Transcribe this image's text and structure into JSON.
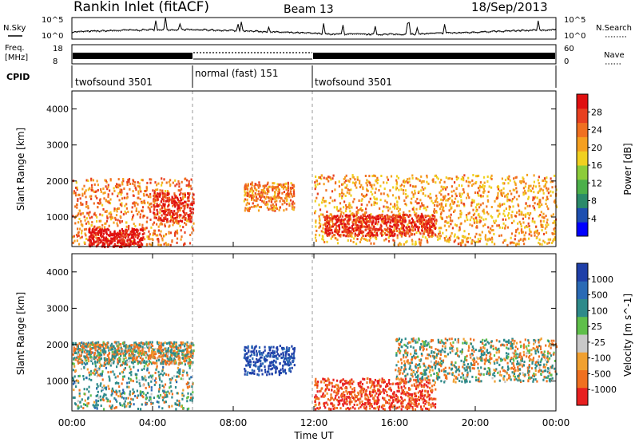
{
  "header": {
    "title": "Rankin Inlet (fitACF)",
    "beam": "Beam 13",
    "date": "18/Sep/2013"
  },
  "noise_panel": {
    "left_label": "N.Sky",
    "right_label": "N.Search",
    "left_ticks": [
      "10^5",
      "10^0"
    ],
    "right_ticks": [
      "10^5",
      "10^0"
    ]
  },
  "freq_panel": {
    "left_label_1": "Freq.",
    "left_label_2": "[MHz]",
    "left_ticks": [
      "18",
      "8"
    ],
    "right_label": "Nave",
    "right_ticks": [
      "60",
      "0"
    ]
  },
  "cpid_panel": {
    "label": "CPID",
    "segments": [
      {
        "name": "twofsound 3501",
        "start": 0,
        "end": 6
      },
      {
        "name": "normal (fast) 151",
        "start": 6,
        "end": 12
      },
      {
        "name": "twofsound 3501",
        "start": 12,
        "end": 24
      }
    ]
  },
  "x_axis": {
    "label": "Time UT",
    "ticks": [
      "00:00",
      "04:00",
      "08:00",
      "12:00",
      "16:00",
      "20:00",
      "00:00"
    ],
    "range_hours": [
      0,
      24
    ]
  },
  "y_axis": {
    "label": "Slant Range [km]",
    "ticks": [
      "1000",
      "2000",
      "3000",
      "4000"
    ],
    "range_km": [
      180,
      4500
    ]
  },
  "power_colorbar": {
    "label": "Power [dB]",
    "ticks": [
      "4",
      "8",
      "12",
      "16",
      "20",
      "24",
      "28"
    ],
    "colors": [
      "#0000ff",
      "#1e4fb0",
      "#2b8a6a",
      "#4cb04a",
      "#8ccc3a",
      "#f0d020",
      "#f5a020",
      "#f07020",
      "#e84020",
      "#e01010"
    ]
  },
  "velocity_colorbar": {
    "label": "Velocity [m s^-1]",
    "ticks": [
      "1000",
      "500",
      "100",
      "25",
      "-25",
      "-100",
      "-500",
      "-1000"
    ],
    "colors": [
      "#1f3fa8",
      "#2a6ab5",
      "#2e8a8a",
      "#5fbf4a",
      "#c8c8c8",
      "#f0a030",
      "#f07020",
      "#e82020"
    ]
  },
  "chart_data": [
    {
      "type": "heatmap",
      "title": "Power [dB]",
      "xlabel": "Time UT",
      "ylabel": "Slant Range [km]",
      "xlim": [
        0,
        24
      ],
      "ylim": [
        180,
        4500
      ],
      "colorbar_range": [
        0,
        30
      ],
      "regions": [
        {
          "t_start": 0.0,
          "t_end": 6.0,
          "r_low": 250,
          "r_high": 2100,
          "approx_power_db": 22
        },
        {
          "t_start": 0.8,
          "t_end": 3.5,
          "r_low": 200,
          "r_high": 700,
          "approx_power_db": 30
        },
        {
          "t_start": 4.0,
          "t_end": 6.0,
          "r_low": 900,
          "r_high": 1700,
          "approx_power_db": 28
        },
        {
          "t_start": 8.5,
          "t_end": 11.0,
          "r_low": 1200,
          "r_high": 2000,
          "approx_power_db": 22
        },
        {
          "t_start": 12.0,
          "t_end": 24.0,
          "r_low": 250,
          "r_high": 2200,
          "approx_power_db": 20
        },
        {
          "t_start": 12.5,
          "t_end": 18.0,
          "r_low": 500,
          "r_high": 1100,
          "approx_power_db": 27
        }
      ]
    },
    {
      "type": "heatmap",
      "title": "Velocity [m s^-1]",
      "xlabel": "Time UT",
      "ylabel": "Slant Range [km]",
      "xlim": [
        0,
        24
      ],
      "ylim": [
        180,
        4500
      ],
      "colorbar_range": [
        -1000,
        1000
      ],
      "regions": [
        {
          "t_start": 0.0,
          "t_end": 6.0,
          "r_low": 250,
          "r_high": 2100,
          "approx_velocity": 100
        },
        {
          "t_start": 0.0,
          "t_end": 6.0,
          "r_low": 1500,
          "r_high": 2100,
          "approx_velocity": 0
        },
        {
          "t_start": 8.5,
          "t_end": 11.0,
          "r_low": 1200,
          "r_high": 2000,
          "approx_velocity": 800
        },
        {
          "t_start": 12.0,
          "t_end": 18.0,
          "r_low": 250,
          "r_high": 1100,
          "approx_velocity": -300
        },
        {
          "t_start": 16.0,
          "t_end": 24.0,
          "r_low": 1000,
          "r_high": 2200,
          "approx_velocity": 25
        }
      ]
    }
  ]
}
